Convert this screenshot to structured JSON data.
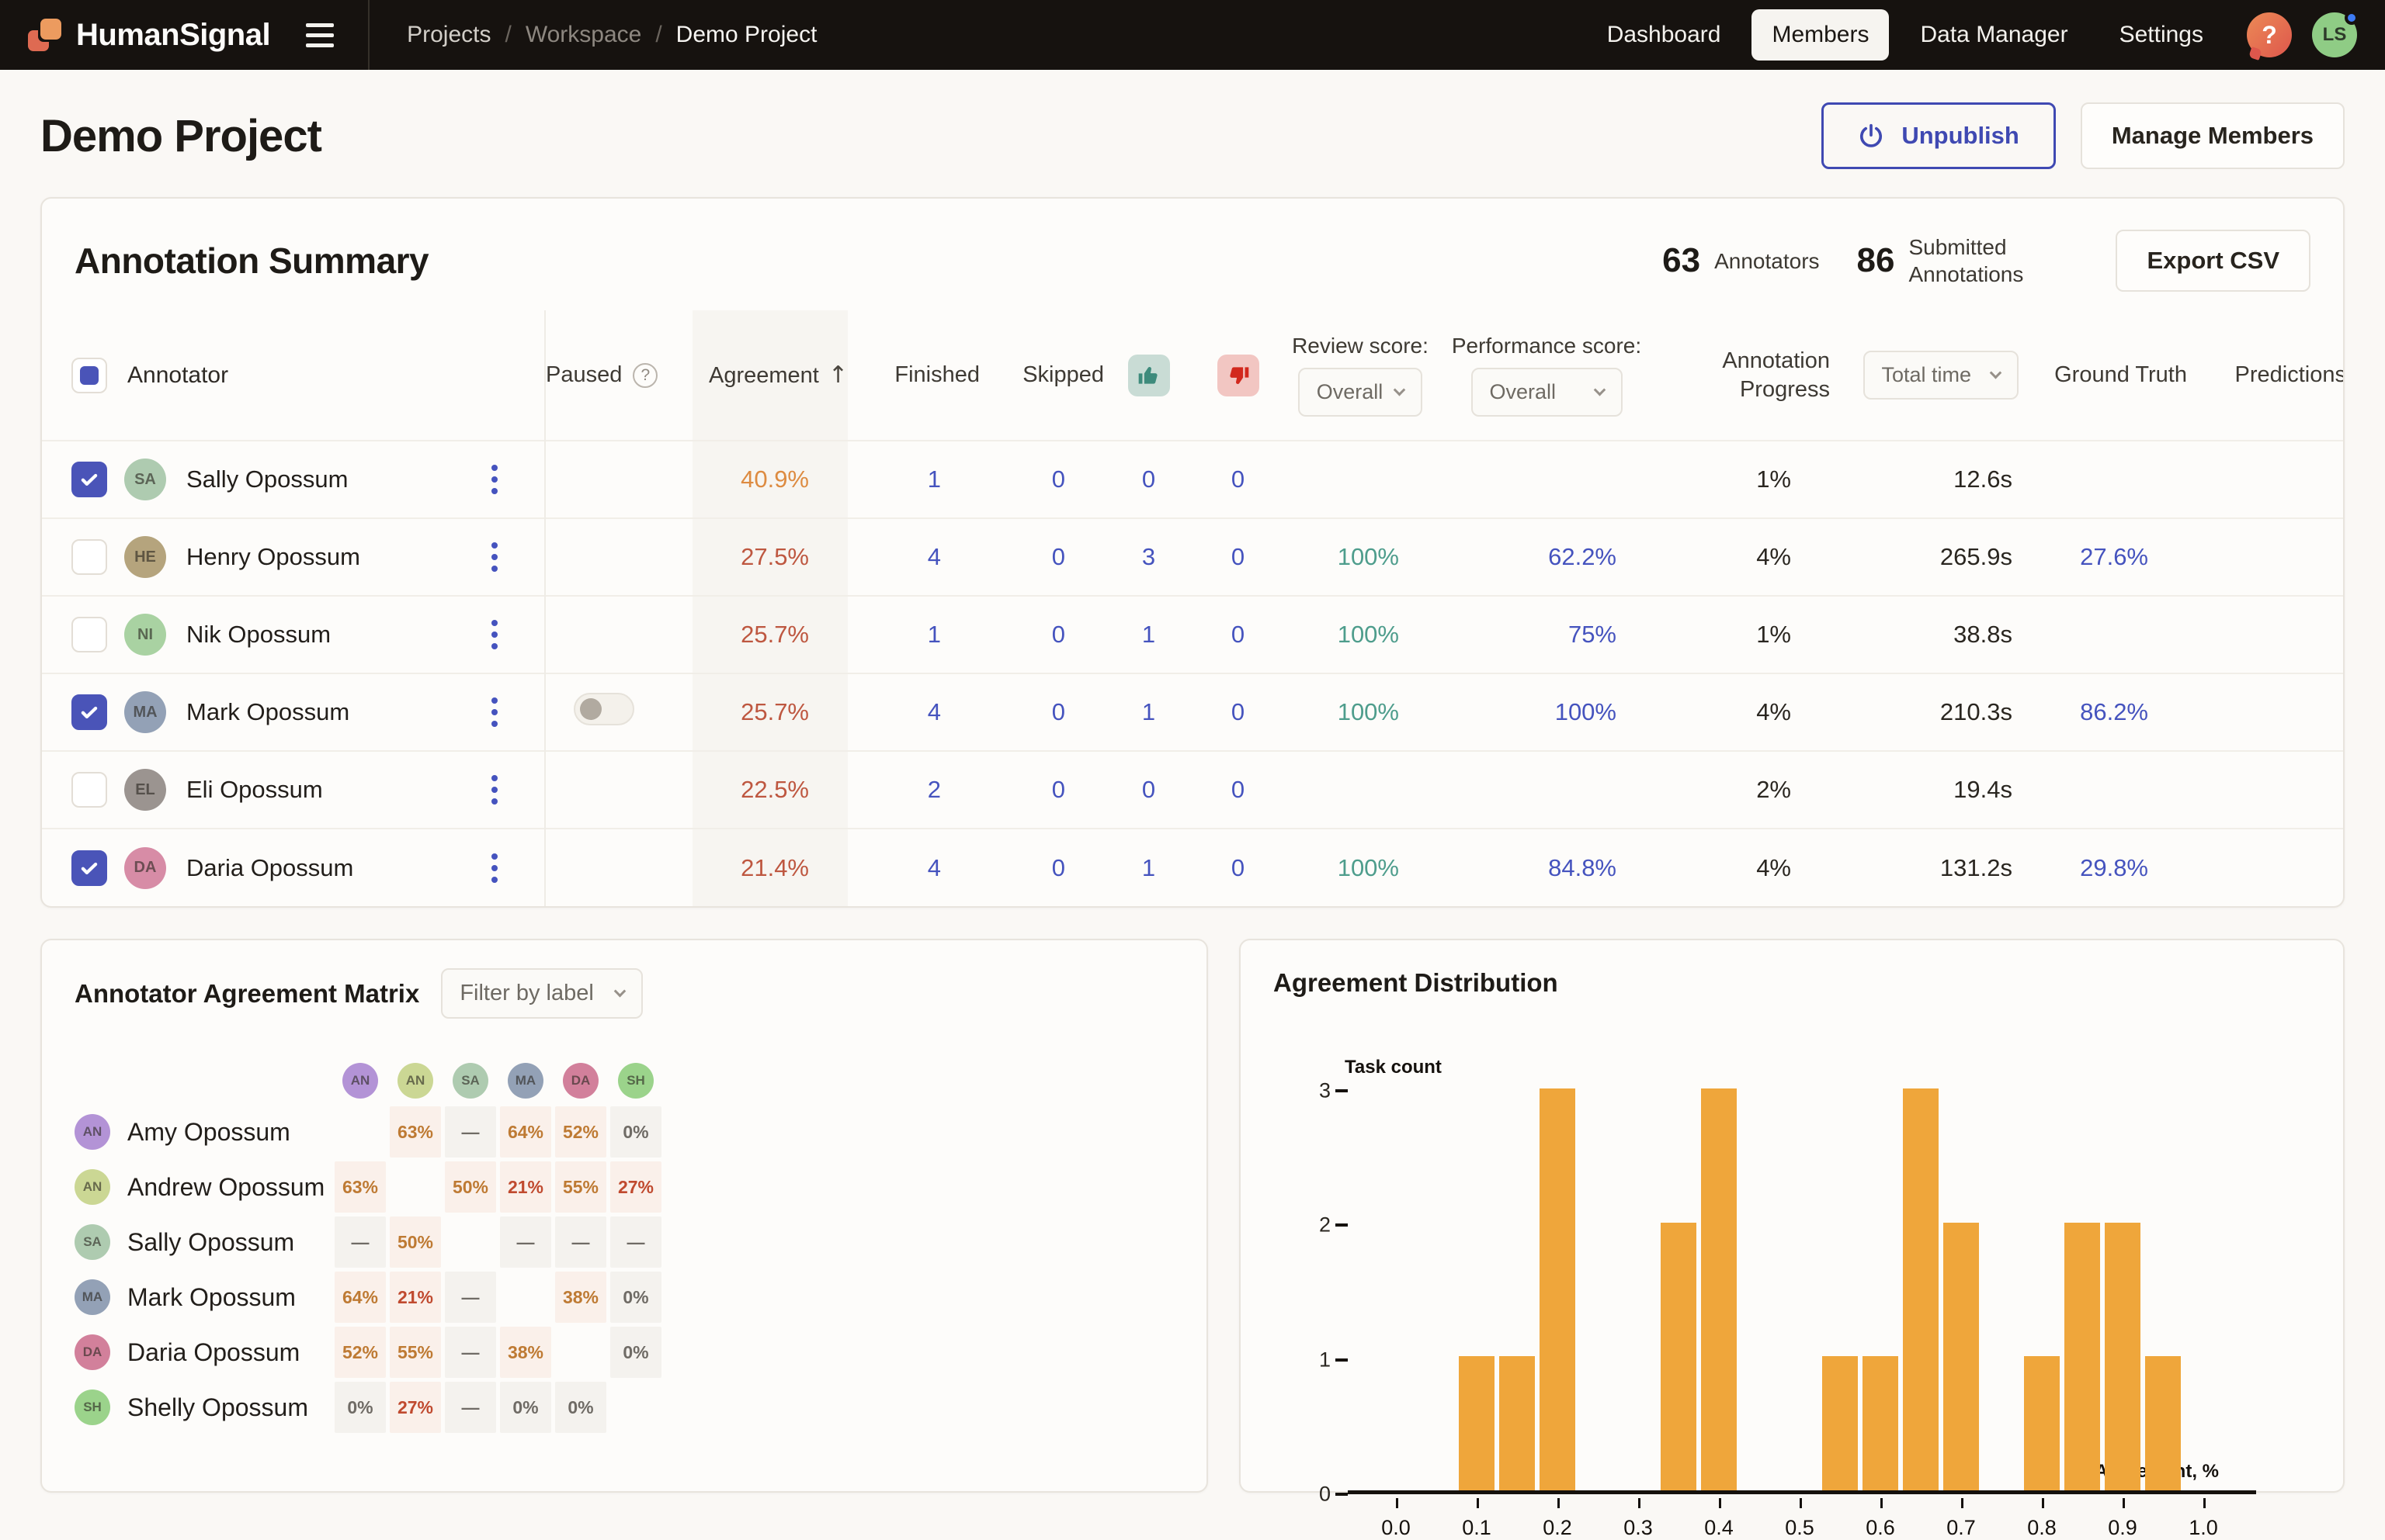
{
  "topbar": {
    "brand": "HumanSignal",
    "breadcrumb": [
      "Projects",
      "Workspace",
      "Demo Project"
    ],
    "nav": [
      "Dashboard",
      "Members",
      "Data Manager",
      "Settings"
    ],
    "active_nav": "Members",
    "help_glyph": "?",
    "avatar_initials": "LS"
  },
  "page": {
    "title": "Demo Project",
    "unpublish_label": "Unpublish",
    "manage_members_label": "Manage Members"
  },
  "summary": {
    "title": "Annotation Summary",
    "annotators_count": "63",
    "annotators_label": "Annotators",
    "submitted_count": "86",
    "submitted_label": "Submitted Annotations",
    "export_label": "Export CSV"
  },
  "table": {
    "columns": {
      "annotator": "Annotator",
      "paused": "Paused",
      "agreement": "Agreement",
      "finished": "Finished",
      "skipped": "Skipped",
      "accepted_icon": "thumbs-up-icon",
      "rejected_icon": "thumbs-down-icon",
      "review_score": "Review score:",
      "performance_score": "Performance score:",
      "annotation_progress": "Annotation Progress",
      "total_time": "Total time",
      "ground_truth": "Ground Truth",
      "predictions": "Predictions"
    },
    "review_score_filter": "Overall",
    "performance_score_filter": "Overall",
    "total_time_filter": "Total time",
    "rows": [
      {
        "name": "Sally Opossum",
        "initials": "SA",
        "avatar_color": "#AECBB0",
        "checked": true,
        "pause_toggle": false,
        "agreement": "40.9%",
        "finished": "1",
        "skipped": "0",
        "accepted": "0",
        "rejected": "0",
        "review_score": "",
        "performance_score": "",
        "progress": "1%",
        "total_time": "12.6s",
        "ground_truth": "",
        "predictions": ""
      },
      {
        "name": "Henry Opossum",
        "initials": "HE",
        "avatar_color": "#B5A47D",
        "checked": false,
        "pause_toggle": false,
        "agreement": "27.5%",
        "finished": "4",
        "skipped": "0",
        "accepted": "3",
        "rejected": "0",
        "review_score": "100%",
        "performance_score": "62.2%",
        "progress": "4%",
        "total_time": "265.9s",
        "ground_truth": "27.6%",
        "predictions": ""
      },
      {
        "name": "Nik Opossum",
        "initials": "NI",
        "avatar_color": "#A9D2A2",
        "checked": false,
        "pause_toggle": false,
        "agreement": "25.7%",
        "finished": "1",
        "skipped": "0",
        "accepted": "1",
        "rejected": "0",
        "review_score": "100%",
        "performance_score": "75%",
        "progress": "1%",
        "total_time": "38.8s",
        "ground_truth": "",
        "predictions": ""
      },
      {
        "name": "Mark Opossum",
        "initials": "MA",
        "avatar_color": "#93A1B6",
        "checked": true,
        "pause_toggle": true,
        "agreement": "25.7%",
        "finished": "4",
        "skipped": "0",
        "accepted": "1",
        "rejected": "0",
        "review_score": "100%",
        "performance_score": "100%",
        "progress": "4%",
        "total_time": "210.3s",
        "ground_truth": "86.2%",
        "predictions": ""
      },
      {
        "name": "Eli Opossum",
        "initials": "EL",
        "avatar_color": "#9B9490",
        "checked": false,
        "pause_toggle": false,
        "agreement": "22.5%",
        "finished": "2",
        "skipped": "0",
        "accepted": "0",
        "rejected": "0",
        "review_score": "",
        "performance_score": "",
        "progress": "2%",
        "total_time": "19.4s",
        "ground_truth": "",
        "predictions": ""
      },
      {
        "name": "Daria Opossum",
        "initials": "DA",
        "avatar_color": "#D78CA6",
        "checked": true,
        "pause_toggle": false,
        "agreement": "21.4%",
        "finished": "4",
        "skipped": "0",
        "accepted": "1",
        "rejected": "0",
        "review_score": "100%",
        "performance_score": "84.8%",
        "progress": "4%",
        "total_time": "131.2s",
        "ground_truth": "29.8%",
        "predictions": ""
      }
    ]
  },
  "matrix": {
    "title": "Annotator Agreement Matrix",
    "filter_label": "Filter by label",
    "people": [
      {
        "name": "Amy Opossum",
        "initials": "AN",
        "color": "#B393D6"
      },
      {
        "name": "Andrew Opossum",
        "initials": "AN",
        "color": "#CBD794"
      },
      {
        "name": "Sally Opossum",
        "initials": "SA",
        "color": "#AECBB0"
      },
      {
        "name": "Mark Opossum",
        "initials": "MA",
        "color": "#93A1B6"
      },
      {
        "name": "Daria Opossum",
        "initials": "DA",
        "color": "#D2809B"
      },
      {
        "name": "Shelly Opossum",
        "initials": "SH",
        "color": "#9BD38B"
      }
    ],
    "cells": [
      [
        "",
        "63%",
        "—",
        "64%",
        "52%",
        "0%"
      ],
      [
        "63%",
        "",
        "50%",
        "21%",
        "55%",
        "27%"
      ],
      [
        "—",
        "50%",
        "",
        "—",
        "—",
        "—"
      ],
      [
        "64%",
        "21%",
        "—",
        "",
        "38%",
        "0%"
      ],
      [
        "52%",
        "55%",
        "—",
        "38%",
        "",
        "0%"
      ],
      [
        "0%",
        "27%",
        "—",
        "0%",
        "0%",
        ""
      ]
    ]
  },
  "chart_data": {
    "type": "bar",
    "title": "Agreement Distribution",
    "xlabel": "Agreement, %",
    "ylabel": "Task count",
    "x_ticks": [
      "0.0",
      "0.1",
      "0.2",
      "0.3",
      "0.4",
      "0.5",
      "0.6",
      "0.7",
      "0.8",
      "0.9",
      "1.0"
    ],
    "y_ticks": [
      0,
      1,
      2,
      3
    ],
    "xlim": [
      -0.06,
      1.07
    ],
    "ylim": [
      0,
      3
    ],
    "grid": false,
    "legend": "none",
    "bar_color": "#EFA63B",
    "bar_width": 0.044,
    "bars": [
      {
        "x": 0.1,
        "count": 1
      },
      {
        "x": 0.15,
        "count": 1
      },
      {
        "x": 0.2,
        "count": 3
      },
      {
        "x": 0.35,
        "count": 2
      },
      {
        "x": 0.4,
        "count": 3
      },
      {
        "x": 0.55,
        "count": 1
      },
      {
        "x": 0.6,
        "count": 1
      },
      {
        "x": 0.65,
        "count": 3
      },
      {
        "x": 0.7,
        "count": 2
      },
      {
        "x": 0.8,
        "count": 1
      },
      {
        "x": 0.85,
        "count": 2
      },
      {
        "x": 0.9,
        "count": 2
      },
      {
        "x": 0.95,
        "count": 1
      }
    ]
  },
  "colors": {
    "topbar_bg": "#16120F",
    "accent_blue": "#4553BE",
    "review_teal": "#4E9D8C",
    "agreement_orange": "#DD8B41",
    "agreement_red": "#BE5740",
    "histogram_orange": "#EFA63B"
  }
}
